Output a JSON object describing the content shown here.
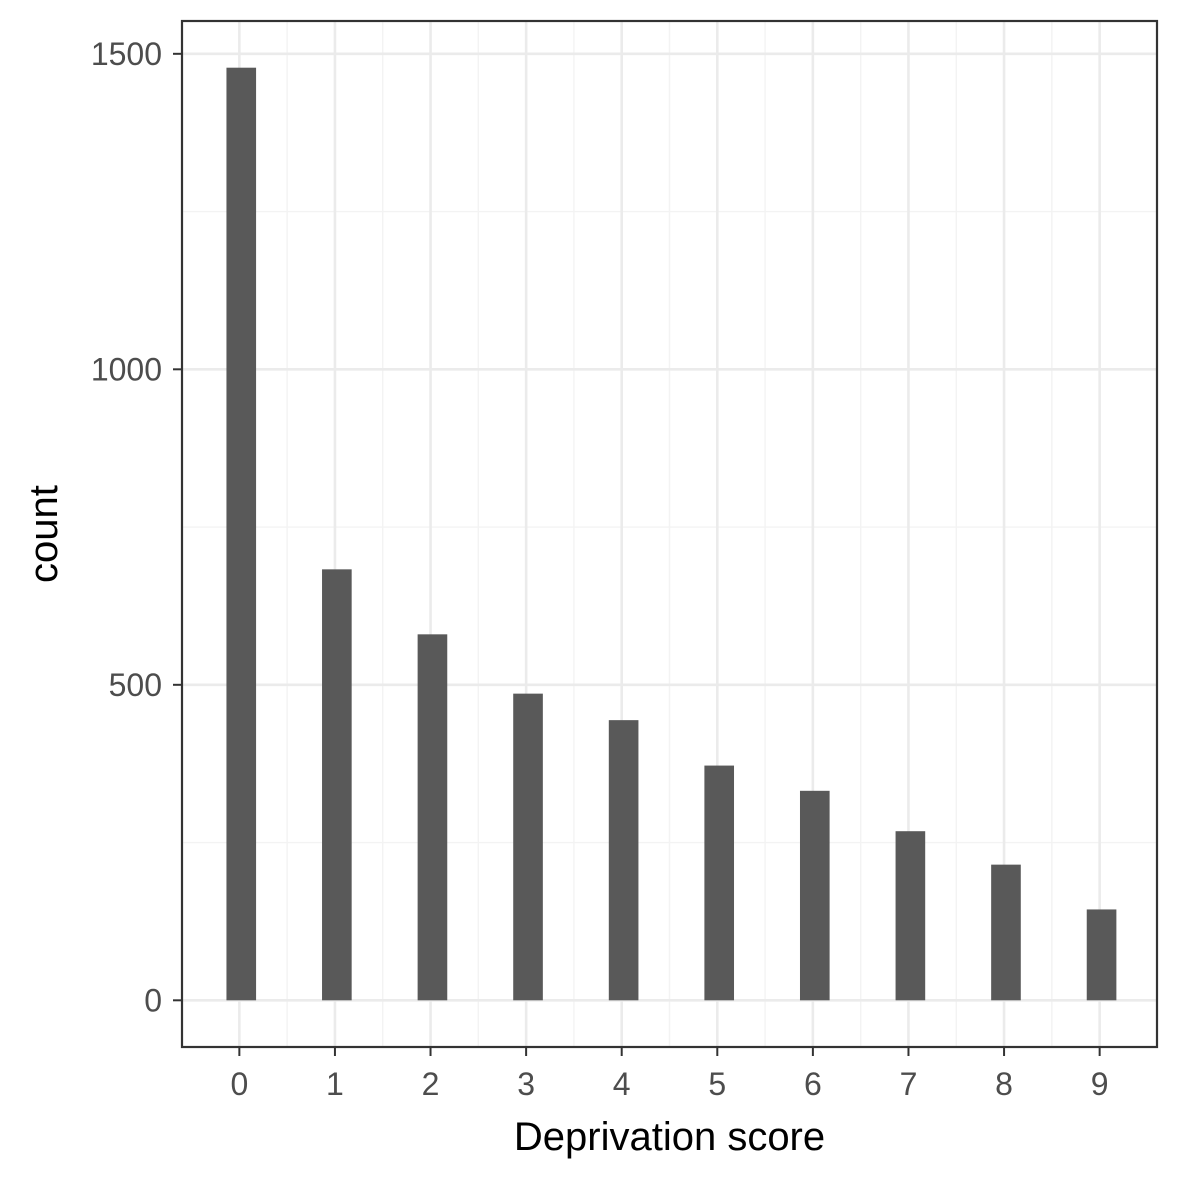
{
  "chart_data": {
    "type": "bar",
    "categories": [
      "0",
      "1",
      "2",
      "3",
      "4",
      "5",
      "6",
      "7",
      "8",
      "9"
    ],
    "x": [
      0,
      1,
      2,
      3,
      4,
      5,
      6,
      7,
      8,
      9
    ],
    "values": [
      1478,
      683,
      580,
      486,
      444,
      372,
      332,
      268,
      215,
      144
    ],
    "xlabel": "Deprivation score",
    "ylabel": "count",
    "xlim": [
      -0.6,
      9.6
    ],
    "ylim": [
      -74,
      1552
    ],
    "yticks": [
      0,
      500,
      1000,
      1500
    ],
    "yticklabels": [
      "0",
      "500",
      "1000",
      "1500"
    ],
    "grid": true,
    "legend": "none",
    "bar_color": "#595959",
    "panel_background": "#ffffff",
    "panel_border_color": "#333333",
    "grid_color": "#ebebeb"
  }
}
